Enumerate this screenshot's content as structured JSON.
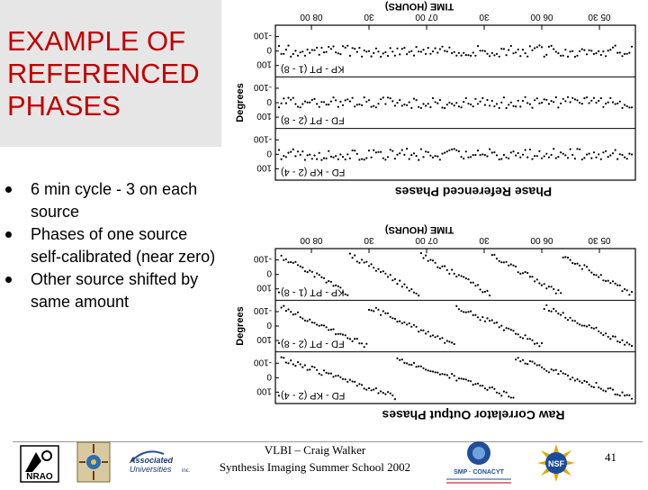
{
  "slide": {
    "title": "EXAMPLE OF REFERENCED PHASES",
    "bullets": [
      "6 min cycle - 3 on each source",
      "Phases of one source self-calibrated (near zero)",
      "Other source shifted by same amount"
    ]
  },
  "figure": {
    "top_plot": {
      "time_axis_label": "TIME (HOURS)",
      "time_ticks": [
        "05 30",
        "06 00",
        "30",
        "07 00",
        "30",
        "08 00"
      ],
      "y_axis_label": "Degrees",
      "y_ticks": [
        "-100",
        "0",
        "100"
      ],
      "panel_labels": [
        "KP - PT (1 - 8)",
        "FD - PT (2 - 8)",
        "FD - KP (2 - 4)"
      ],
      "caption": "Phase Referenced Phases"
    },
    "bottom_plot": {
      "time_axis_label": "TIME (HOURS)",
      "time_ticks": [
        "05 30",
        "06 00",
        "30",
        "07 00",
        "30",
        "08 00"
      ],
      "y_axis_label": "Degrees",
      "y_ticks": [
        "-100",
        "0",
        "100"
      ],
      "panel_labels": [
        "KP - PT (1 - 8)",
        "FD - PT (2 - 8)",
        "FD - KP (2 - 4)"
      ],
      "caption": "Raw Correlator Output Phases"
    }
  },
  "footer": {
    "line1": "VLBI – Craig Walker",
    "line2": "Synthesis Imaging Summer School 2002",
    "page_number": "41",
    "logos": {
      "nrao": "NRAO",
      "aui_line1": "Associated",
      "aui_line2": "Universities",
      "aui_suffix": "inc.",
      "conacyt": "SMP · CONACYT",
      "nsf": "NSF"
    }
  }
}
